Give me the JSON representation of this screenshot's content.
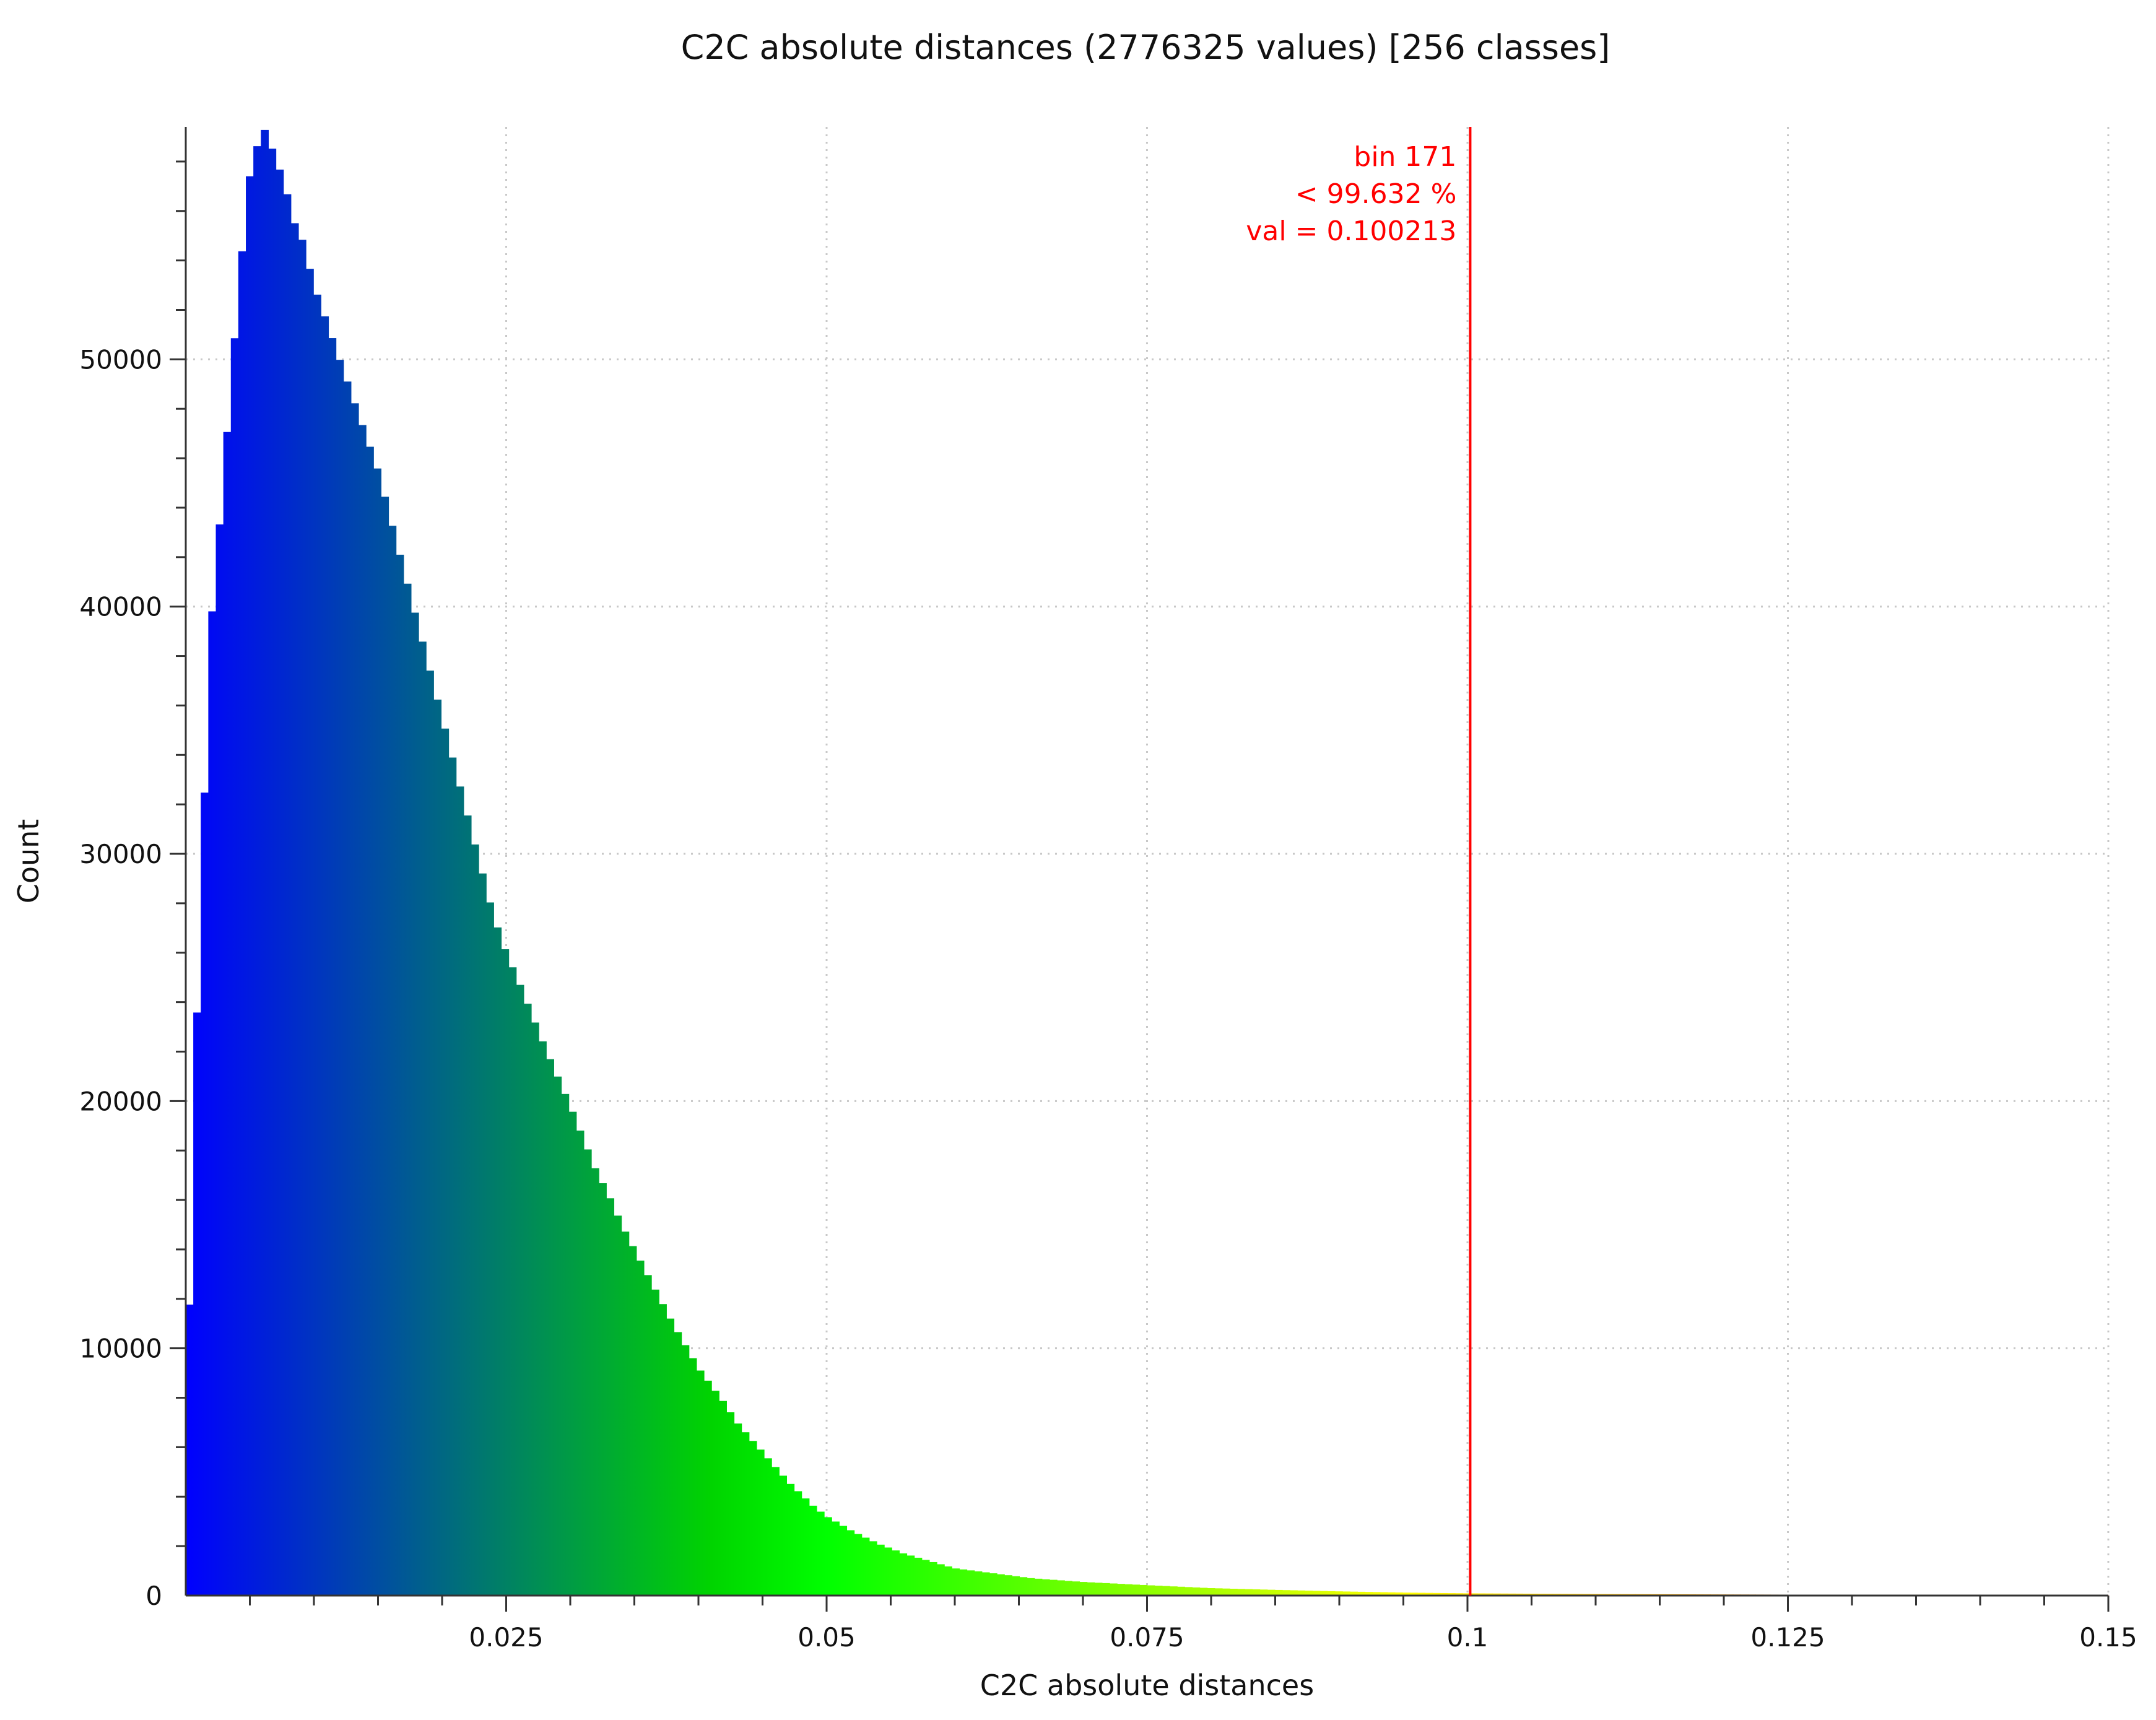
{
  "chart_data": {
    "type": "bar",
    "title": "C2C absolute distances (2776325 values)  [256 classes]",
    "xlabel": "C2C absolute distances",
    "ylabel": "Count",
    "xlim": [
      0,
      0.15
    ],
    "ylim": [
      0,
      59400
    ],
    "grid": true,
    "x_ticks": [
      {
        "value": 0.025,
        "label": "0.025"
      },
      {
        "value": 0.05,
        "label": "0.05"
      },
      {
        "value": 0.075,
        "label": "0.075"
      },
      {
        "value": 0.1,
        "label": "0.1"
      },
      {
        "value": 0.125,
        "label": "0.125"
      },
      {
        "value": 0.15,
        "label": "0.15"
      }
    ],
    "y_ticks": [
      {
        "value": 0,
        "label": "0"
      },
      {
        "value": 10000,
        "label": "10000"
      },
      {
        "value": 20000,
        "label": "20000"
      },
      {
        "value": 30000,
        "label": "30000"
      },
      {
        "value": 40000,
        "label": "40000"
      },
      {
        "value": 50000,
        "label": "50000"
      }
    ],
    "classes": 256,
    "bin_width": 0.000586,
    "profile": {
      "x": [
        0,
        0.0003,
        0.0009,
        0.0015,
        0.002,
        0.003,
        0.0035,
        0.004,
        0.0045,
        0.005,
        0.0055,
        0.006,
        0.0065,
        0.007,
        0.0075,
        0.008,
        0.0085,
        0.009,
        0.0095,
        0.01,
        0.011,
        0.012,
        0.013,
        0.014,
        0.015,
        0.016,
        0.017,
        0.018,
        0.019,
        0.02,
        0.021,
        0.022,
        0.023,
        0.024,
        0.025,
        0.026,
        0.027,
        0.028,
        0.029,
        0.03,
        0.031,
        0.032,
        0.033,
        0.034,
        0.035,
        0.036,
        0.037,
        0.038,
        0.039,
        0.04,
        0.041,
        0.042,
        0.043,
        0.044,
        0.045,
        0.046,
        0.047,
        0.048,
        0.049,
        0.05,
        0.052,
        0.054,
        0.056,
        0.058,
        0.06,
        0.063,
        0.066,
        0.07,
        0.075,
        0.08,
        0.085,
        0.09,
        0.095,
        0.1,
        0.11,
        0.12,
        0.13,
        0.14,
        0.15
      ],
      "y": [
        2000,
        12000,
        24000,
        33000,
        39500,
        45500,
        49000,
        52000,
        55000,
        57500,
        58500,
        59400,
        59000,
        58000,
        57500,
        56500,
        55500,
        55000,
        54000,
        53000,
        51500,
        50000,
        48500,
        47000,
        45500,
        43500,
        41500,
        39500,
        37500,
        35500,
        33500,
        31500,
        29500,
        27500,
        26000,
        24800,
        23500,
        22200,
        21000,
        19800,
        18500,
        17200,
        16200,
        15000,
        14000,
        13000,
        12000,
        11000,
        10100,
        9200,
        8500,
        7800,
        7000,
        6400,
        5800,
        5200,
        4600,
        4100,
        3600,
        3200,
        2600,
        2100,
        1700,
        1400,
        1100,
        900,
        700,
        550,
        420,
        300,
        230,
        170,
        120,
        90,
        60,
        45,
        30,
        20,
        10
      ]
    },
    "color_scale": [
      {
        "value": 0,
        "color": "#0000ff"
      },
      {
        "value": 0.041,
        "color": "#00d400"
      },
      {
        "value": 0.05,
        "color": "#00ff00"
      },
      {
        "value": 0.095,
        "color": "#ffff00"
      },
      {
        "value": 0.15,
        "color": "#ff2000"
      }
    ],
    "marker": {
      "value": 0.100213,
      "color": "#ff0000",
      "lines": [
        "bin 171",
        "< 99.632 %",
        "val = 0.100213"
      ]
    }
  }
}
